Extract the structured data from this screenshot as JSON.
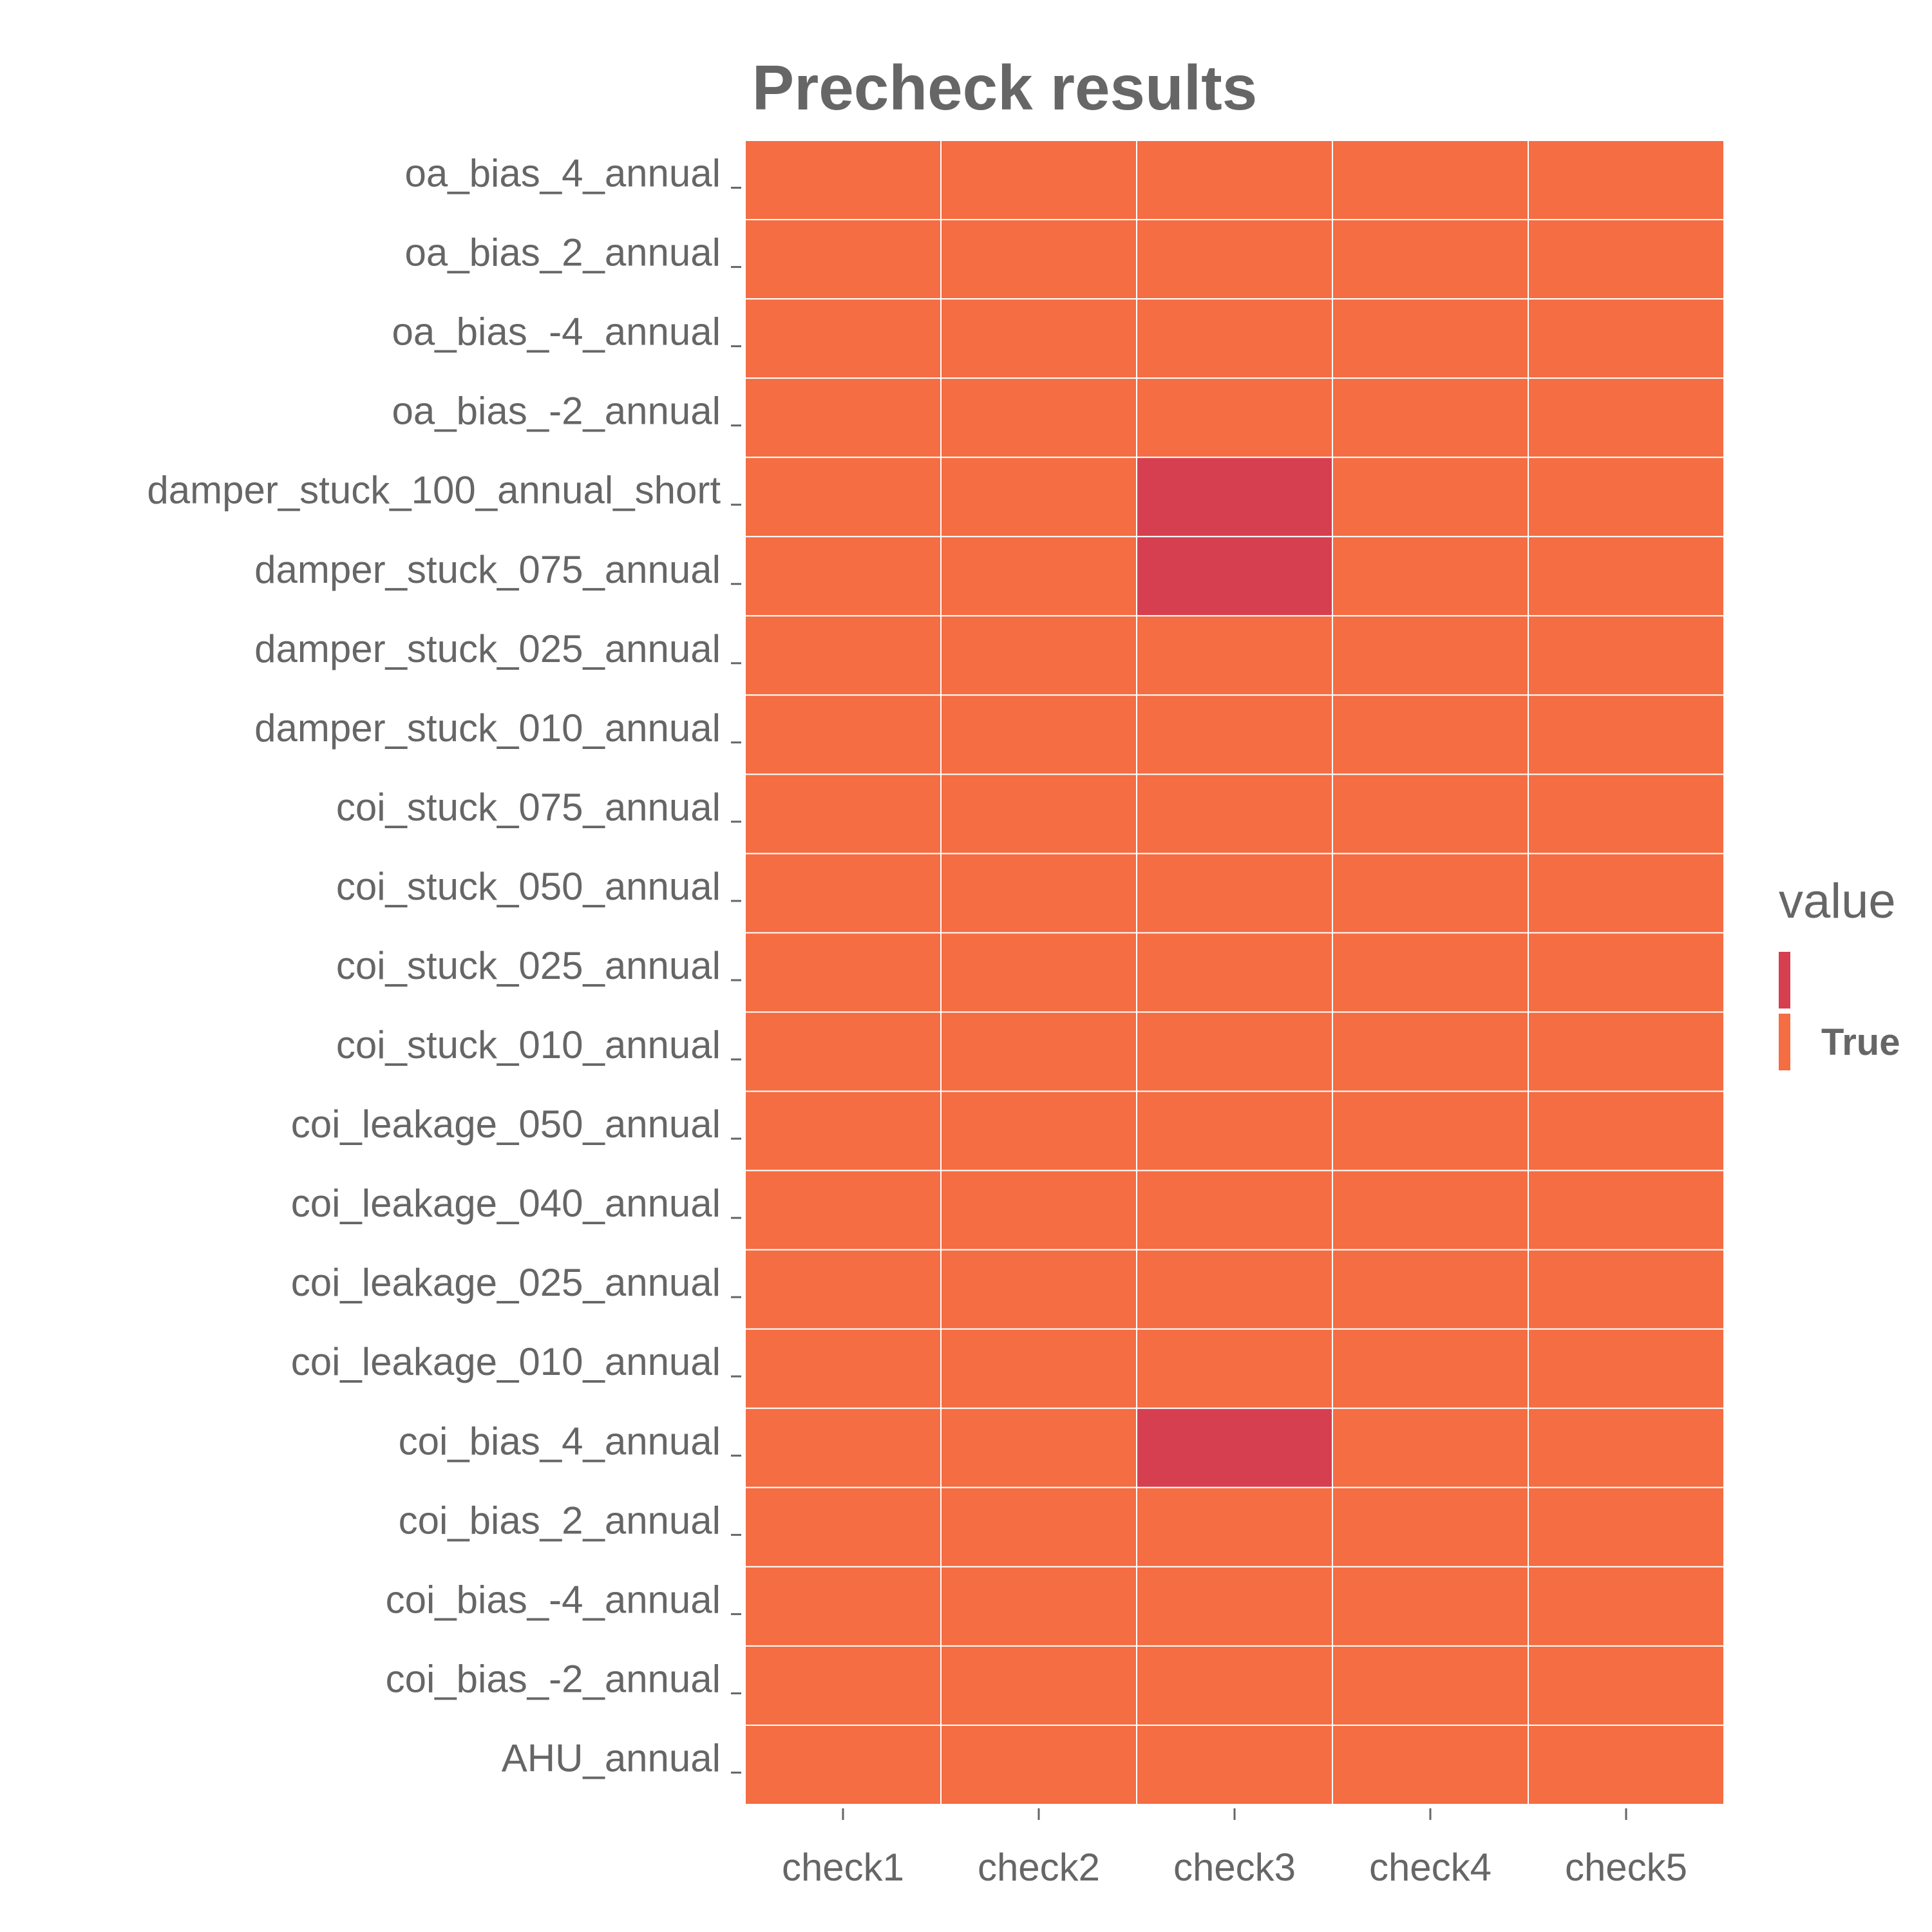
{
  "chart_data": {
    "type": "heatmap",
    "title": "Precheck results",
    "xlabel": "",
    "ylabel": "",
    "x_categories": [
      "check1",
      "check2",
      "check3",
      "check4",
      "check5"
    ],
    "y_categories": [
      "oa_bias_4_annual",
      "oa_bias_2_annual",
      "oa_bias_-4_annual",
      "oa_bias_-2_annual",
      "damper_stuck_100_annual_short",
      "damper_stuck_075_annual",
      "damper_stuck_025_annual",
      "damper_stuck_010_annual",
      "coi_stuck_075_annual",
      "coi_stuck_050_annual",
      "coi_stuck_025_annual",
      "coi_stuck_010_annual",
      "coi_leakage_050_annual",
      "coi_leakage_040_annual",
      "coi_leakage_025_annual",
      "coi_leakage_010_annual",
      "coi_bias_4_annual",
      "coi_bias_2_annual",
      "coi_bias_-4_annual",
      "coi_bias_-2_annual",
      "AHU_annual"
    ],
    "values": [
      [
        1,
        1,
        1,
        1,
        1
      ],
      [
        1,
        1,
        1,
        1,
        1
      ],
      [
        1,
        1,
        1,
        1,
        1
      ],
      [
        1,
        1,
        1,
        1,
        1
      ],
      [
        1,
        1,
        0,
        1,
        1
      ],
      [
        1,
        1,
        0,
        1,
        1
      ],
      [
        1,
        1,
        1,
        1,
        1
      ],
      [
        1,
        1,
        1,
        1,
        1
      ],
      [
        1,
        1,
        1,
        1,
        1
      ],
      [
        1,
        1,
        1,
        1,
        1
      ],
      [
        1,
        1,
        1,
        1,
        1
      ],
      [
        1,
        1,
        1,
        1,
        1
      ],
      [
        1,
        1,
        1,
        1,
        1
      ],
      [
        1,
        1,
        1,
        1,
        1
      ],
      [
        1,
        1,
        1,
        1,
        1
      ],
      [
        1,
        1,
        1,
        1,
        1
      ],
      [
        1,
        1,
        0,
        1,
        1
      ],
      [
        1,
        1,
        1,
        1,
        1
      ],
      [
        1,
        1,
        1,
        1,
        1
      ],
      [
        1,
        1,
        1,
        1,
        1
      ],
      [
        1,
        1,
        1,
        1,
        1
      ]
    ],
    "legend": {
      "title": "value",
      "position": "right",
      "entries": [
        {
          "label": "",
          "color": "#d63f4f"
        },
        {
          "label": "True",
          "color": "#f46d43"
        }
      ]
    },
    "colors": {
      "true": "#f46d43",
      "false": "#d63f4f",
      "grid": "#ffffff",
      "text": "#666666"
    },
    "grid": true
  }
}
